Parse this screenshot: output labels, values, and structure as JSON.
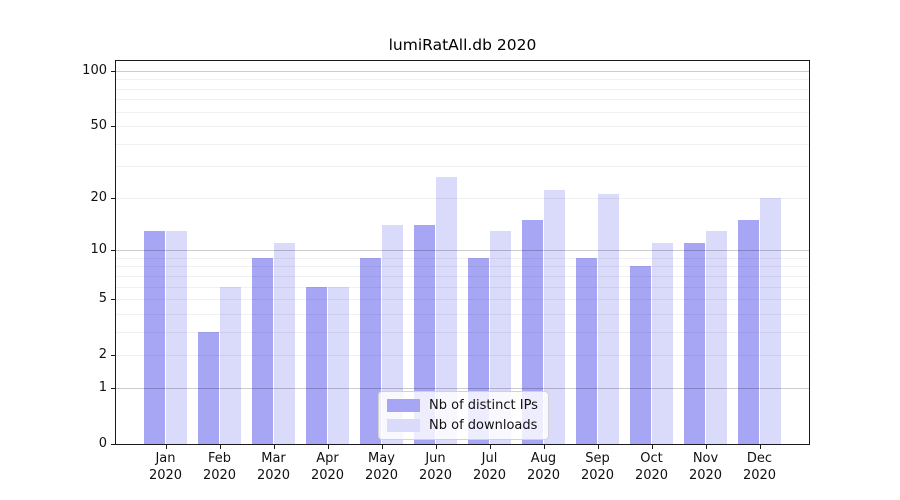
{
  "title": "lumiRatAll.db 2020",
  "chart_data": {
    "type": "bar",
    "title": "lumiRatAll.db 2020",
    "y_scale": "log10(1+y)",
    "y_max": 113,
    "y_ticks": [
      100,
      50,
      20,
      10,
      5,
      2,
      1,
      0
    ],
    "gridlines_minor": [
      2,
      3,
      4,
      5,
      6,
      7,
      8,
      9,
      20,
      30,
      40,
      50,
      60,
      70,
      80,
      90
    ],
    "gridlines_major": [
      1,
      10,
      100
    ],
    "categories": [
      "Jan",
      "Feb",
      "Mar",
      "Apr",
      "May",
      "Jun",
      "Jul",
      "Aug",
      "Sep",
      "Oct",
      "Nov",
      "Dec"
    ],
    "year_label": "2020",
    "series": [
      {
        "name": "Nb of distinct IPs",
        "color": "#a6a6f5",
        "values": [
          13,
          3,
          9,
          6,
          9,
          14,
          9,
          15,
          9,
          8,
          11,
          15
        ]
      },
      {
        "name": "Nb of downloads",
        "color": "#dadafa",
        "values": [
          13,
          6,
          11,
          6,
          14,
          26,
          13,
          22,
          21,
          11,
          13,
          20
        ]
      }
    ],
    "legend_position": "bottom-center",
    "colors": {
      "grid_minor": "rgba(0,0,0,0.055)",
      "grid_major": "rgba(0,0,0,0.20)",
      "spine": "#1a1a1a",
      "text": "#111111",
      "background": "#ffffff"
    }
  }
}
